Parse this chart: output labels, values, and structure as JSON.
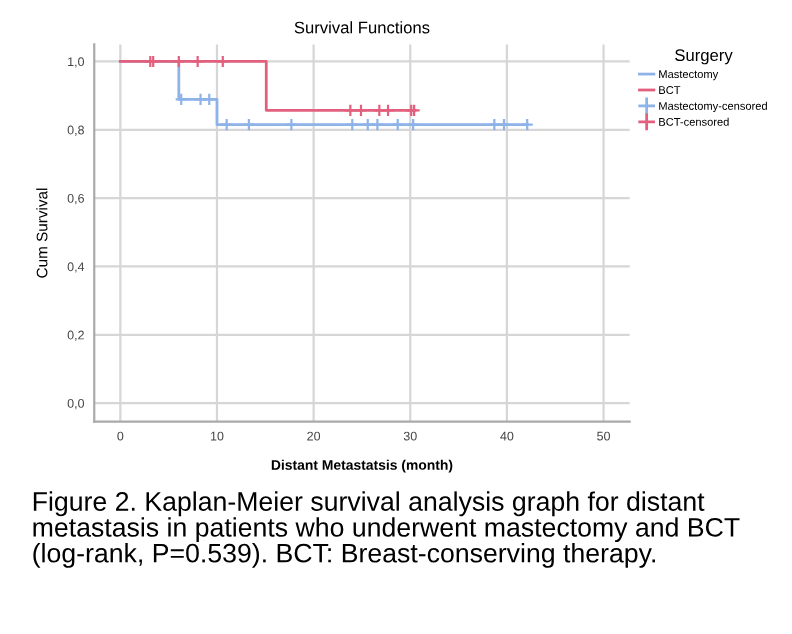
{
  "chart_data": {
    "type": "step",
    "title": "Survival Functions",
    "xlabel": "Distant Metastatsis (month)",
    "ylabel": "Cum Survival",
    "legend_title": "Surgery",
    "legend": "top right",
    "grid": true,
    "xlim": [
      -2.7,
      52.7
    ],
    "ylim": [
      -0.054,
      1.05
    ],
    "xticks": [
      0,
      10,
      20,
      30,
      40,
      50
    ],
    "yticks": [
      {
        "value": 0.0,
        "label": "0,0"
      },
      {
        "value": 0.2,
        "label": "0,2"
      },
      {
        "value": 0.4,
        "label": "0,4"
      },
      {
        "value": 0.6,
        "label": "0,6"
      },
      {
        "value": 0.8,
        "label": "0,8"
      },
      {
        "value": 1.0,
        "label": "1,0"
      }
    ],
    "series": [
      {
        "name": "Mastectomy",
        "color": "#8db3e8",
        "x": [
          0,
          6.05,
          10,
          42.1
        ],
        "values": [
          1,
          0.889,
          0.815,
          0.815
        ]
      },
      {
        "name": "BCT",
        "color": "#e2607e",
        "x": [
          0,
          15.1,
          30.4
        ],
        "values": [
          1,
          0.857,
          0.857
        ]
      },
      {
        "name": "Mastectomy-censored",
        "type": "scatter",
        "marker": "cross",
        "color": "#8db3e8",
        "x": [
          6.3,
          8.3,
          9.2,
          11.0,
          13.3,
          17.7,
          24.0,
          25.6,
          26.6,
          28.7,
          30.3,
          38.7,
          39.7,
          42.1
        ],
        "values": [
          0.889,
          0.889,
          0.889,
          0.815,
          0.815,
          0.815,
          0.815,
          0.815,
          0.815,
          0.815,
          0.815,
          0.815,
          0.815,
          0.815
        ]
      },
      {
        "name": "BCT-censored",
        "type": "scatter",
        "marker": "cross",
        "color": "#e2607e",
        "x": [
          3.1,
          3.4,
          6.05,
          8.0,
          10.6,
          23.8,
          24.9,
          26.8,
          27.7,
          30.1,
          30.4
        ],
        "values": [
          1,
          1,
          1,
          1,
          1,
          0.857,
          0.857,
          0.857,
          0.857,
          0.857,
          0.857
        ]
      }
    ],
    "annotations": [
      "Figure 2. Kaplan-Meier survival analysis graph for distant metastasis in patients who underwent mastectomy and BCT (log-rank, P=0.539). BCT: Breast-conserving therapy."
    ]
  }
}
